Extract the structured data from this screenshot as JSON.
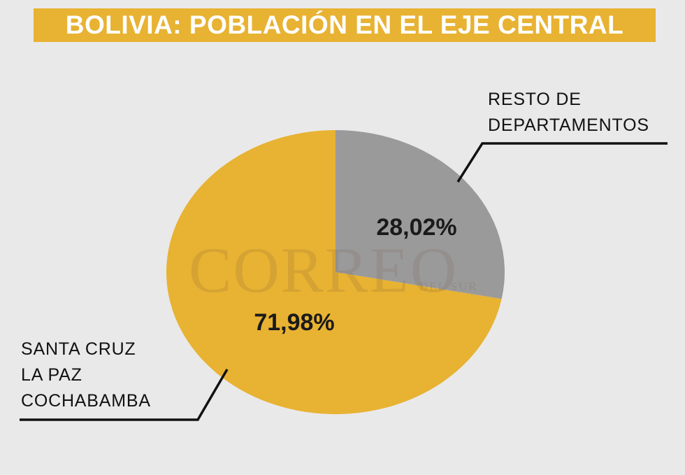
{
  "chart_data": {
    "type": "pie",
    "title": "BOLIVIA: POBLACIÓN EN EL EJE CENTRAL",
    "slices": [
      {
        "label": [
          "RESTO DE",
          "DEPARTAMENTOS"
        ],
        "value": 28.02,
        "value_text": "28,02%",
        "color": "#9a9a9b"
      },
      {
        "label": [
          "SANTA CRUZ",
          "LA PAZ",
          "COCHABAMBA"
        ],
        "value": 71.98,
        "value_text": "71,98%",
        "color": "#e8b232"
      }
    ]
  },
  "watermark": {
    "brand": "CORREO",
    "sub": "DEL SUR"
  },
  "colors": {
    "background": "#e9e9e9",
    "title_banner": "#e8b232",
    "title_text": "#ffffff",
    "leader_line": "#111111"
  }
}
